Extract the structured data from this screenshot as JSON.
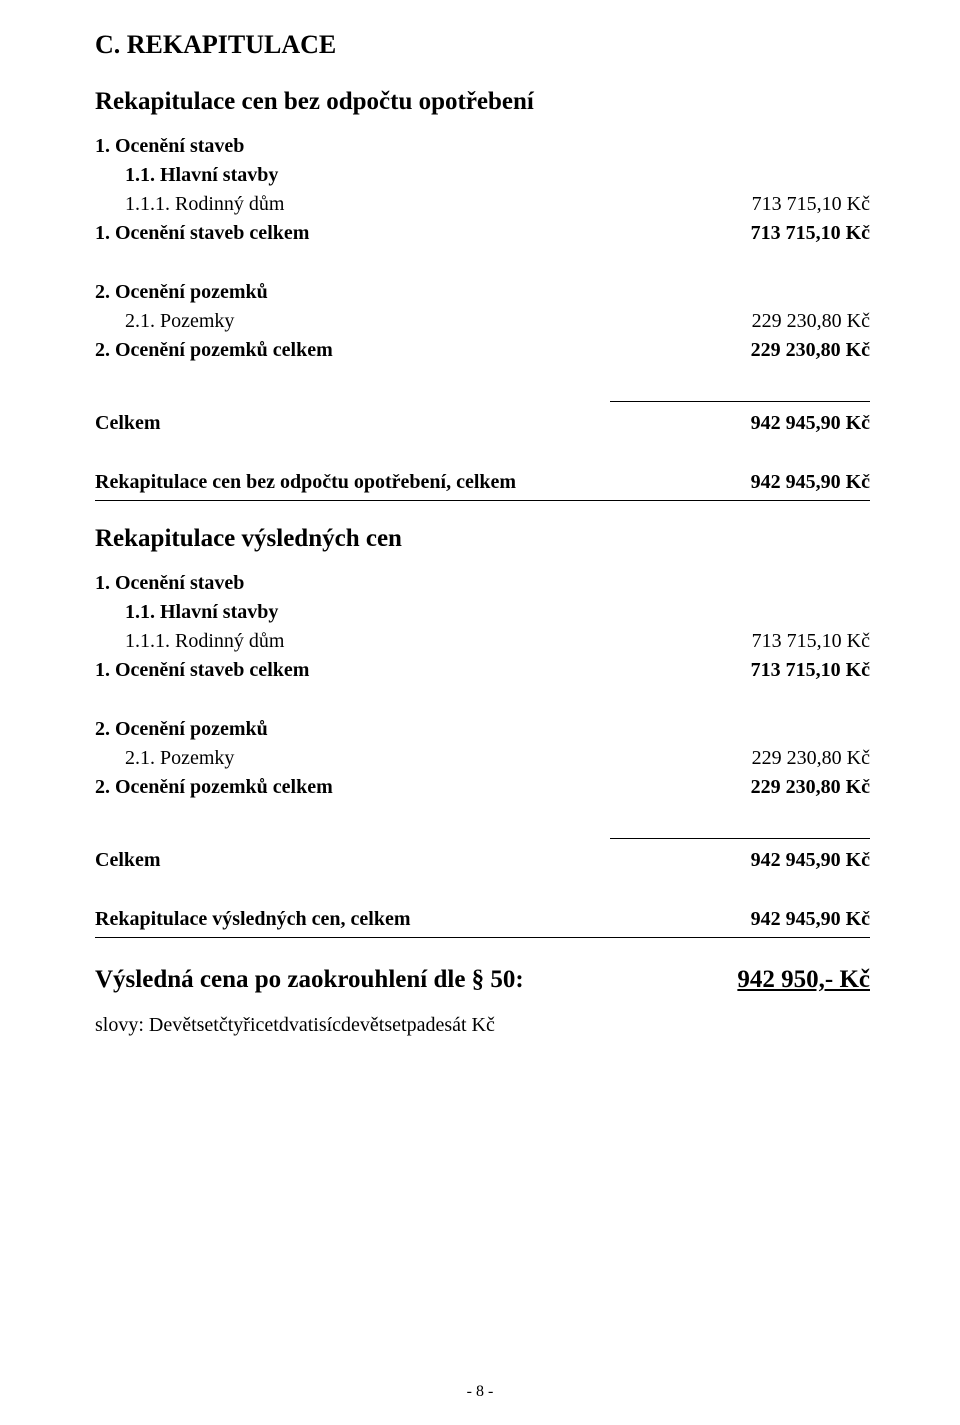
{
  "title": "C. REKAPITULACE",
  "sectionA": {
    "heading": "Rekapitulace cen bez odpočtu opotřebení",
    "staveb": {
      "group": "1. Ocenění staveb",
      "sub": "1.1. Hlavní stavby",
      "item_label": "1.1.1. Rodinný dům",
      "item_value": "713 715,10 Kč",
      "total_label": "1. Ocenění staveb celkem",
      "total_value": "713 715,10 Kč"
    },
    "pozemku": {
      "group": "2. Ocenění pozemků",
      "item_label": "2.1. Pozemky",
      "item_value": "229 230,80 Kč",
      "total_label": "2. Ocenění pozemků celkem",
      "total_value": "229 230,80 Kč"
    },
    "celkem_label": "Celkem",
    "celkem_value": "942 945,90 Kč",
    "recap_label": "Rekapitulace cen bez odpočtu opotřebení, celkem",
    "recap_value": "942 945,90 Kč"
  },
  "sectionB": {
    "heading": "Rekapitulace výsledných cen",
    "staveb": {
      "group": "1. Ocenění staveb",
      "sub": "1.1. Hlavní stavby",
      "item_label": "1.1.1. Rodinný dům",
      "item_value": "713 715,10 Kč",
      "total_label": "1. Ocenění staveb celkem",
      "total_value": "713 715,10 Kč"
    },
    "pozemku": {
      "group": "2. Ocenění pozemků",
      "item_label": "2.1. Pozemky",
      "item_value": "229 230,80 Kč",
      "total_label": "2. Ocenění pozemků celkem",
      "total_value": "229 230,80 Kč"
    },
    "celkem_label": "Celkem",
    "celkem_value": "942 945,90 Kč",
    "recap_label": "Rekapitulace výsledných cen, celkem",
    "recap_value": "942 945,90 Kč"
  },
  "final": {
    "label": "Výsledná cena po zaokrouhlení dle § 50:",
    "value": "942 950,- Kč",
    "slovy": "slovy: Devětsetčtyřicetdvatisícdevětsetpadesát Kč"
  },
  "page_number": "- 8 -"
}
